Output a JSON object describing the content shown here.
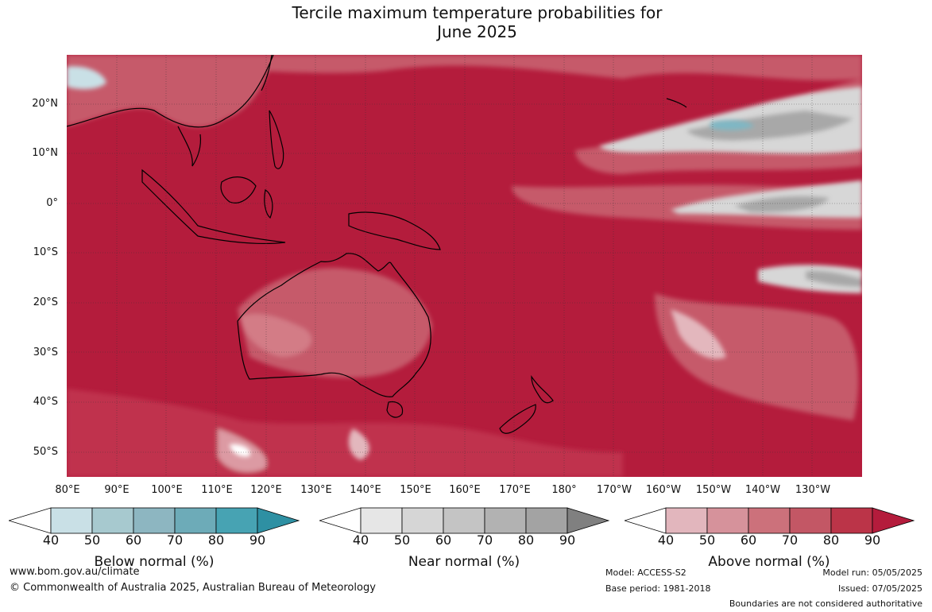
{
  "title": {
    "line1": "Tercile maximum temperature probabilities for",
    "line2": "June 2025"
  },
  "map": {
    "lat_labels": [
      "20°N",
      "10°N",
      "0°",
      "10°S",
      "20°S",
      "30°S",
      "40°S",
      "50°S"
    ],
    "lon_labels": [
      "80°E",
      "90°E",
      "100°E",
      "110°E",
      "120°E",
      "130°E",
      "140°E",
      "150°E",
      "160°E",
      "170°E",
      "180°",
      "170°W",
      "160°W",
      "150°W",
      "140°W",
      "130°W"
    ],
    "lat_range": [
      -55,
      30
    ],
    "lon_range": [
      80,
      240
    ],
    "dominant_category": "Above normal",
    "dominant_class": "90",
    "colors": {
      "above_90": "#b41c3c",
      "above_80": "#c0334d",
      "above_70": "#c65a6b",
      "above_60": "#d37b86",
      "above_50": "#dc9aa3",
      "above_40": "#e3b7bd",
      "near_60": "#c4c4c4",
      "near_50": "#d7d7d7",
      "near_70": "#a8a8a8",
      "below_50": "#c9e0e6",
      "below_60": "#7fb7c4",
      "land_outline": "#000000",
      "gridline": "#333333"
    }
  },
  "colorbars": [
    {
      "name": "below-normal",
      "label": "Below normal (%)",
      "ticks": [
        "40",
        "50",
        "60",
        "70",
        "80",
        "90"
      ],
      "colors": [
        "#ffffff",
        "#c9e0e6",
        "#a7c9cf",
        "#8db6c1",
        "#6dabb8",
        "#47a3b3",
        "#2e90a3"
      ]
    },
    {
      "name": "near-normal",
      "label": "Near normal (%)",
      "ticks": [
        "40",
        "50",
        "60",
        "70",
        "80",
        "90"
      ],
      "colors": [
        "#ffffff",
        "#e6e6e6",
        "#d6d6d6",
        "#c4c4c4",
        "#b2b2b2",
        "#a3a3a3",
        "#808080"
      ]
    },
    {
      "name": "above-normal",
      "label": "Above normal (%)",
      "ticks": [
        "40",
        "50",
        "60",
        "70",
        "80",
        "90"
      ],
      "colors": [
        "#ffffff",
        "#e2b6bd",
        "#d6929b",
        "#cc717b",
        "#c35765",
        "#bb3448",
        "#b41c3c"
      ]
    }
  ],
  "footer": {
    "website": "www.bom.gov.au/climate",
    "copyright": "© Commonwealth of Australia 2025, Australian Bureau of Meteorology",
    "model": "Model: ACCESS-S2",
    "base_period": "Base period: 1981-2018",
    "model_run": "Model run: 05/05/2025",
    "issued": "Issued: 07/05/2025",
    "boundaries": "Boundaries are not considered authoritative"
  }
}
